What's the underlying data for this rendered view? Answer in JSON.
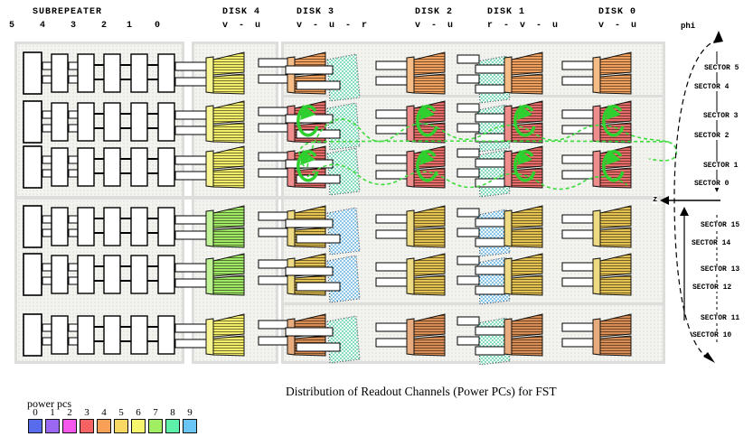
{
  "title": "Distribution of Readout Channels (Power PCs) for FST",
  "header": {
    "subrepeater_label": "SUBREPEATER",
    "subrepeater_channels": [
      "5",
      "4",
      "3",
      "2",
      "1",
      "0"
    ],
    "disks": [
      {
        "label": "DISK 4",
        "planes": "v - u"
      },
      {
        "label": "DISK 3",
        "planes": "v - u - r"
      },
      {
        "label": "DISK 2",
        "planes": "v - u"
      },
      {
        "label": "DISK 1",
        "planes": "r - v - u"
      },
      {
        "label": "DISK 0",
        "planes": "v - u"
      }
    ]
  },
  "axis": {
    "phi_label": "phi",
    "z_label": "z",
    "sectors_top": [
      "SECTOR 5",
      "SECTOR 4",
      "SECTOR 3",
      "SECTOR 2",
      "SECTOR 1",
      "SECTOR 0"
    ],
    "sectors_bottom": [
      "SECTOR 15",
      "SECTOR 14",
      "SECTOR 13",
      "SECTOR 12",
      "SECTOR 11",
      "SECTOR 10"
    ]
  },
  "legend": {
    "label": "power pcs",
    "items": [
      {
        "id": "0",
        "color": "#5a6cee"
      },
      {
        "id": "1",
        "color": "#9a68f2"
      },
      {
        "id": "2",
        "color": "#f857ee"
      },
      {
        "id": "3",
        "color": "#f76262"
      },
      {
        "id": "4",
        "color": "#f8a058"
      },
      {
        "id": "5",
        "color": "#f8d862"
      },
      {
        "id": "6",
        "color": "#f6f66e"
      },
      {
        "id": "7",
        "color": "#a2ee62"
      },
      {
        "id": "8",
        "color": "#5cf0a8"
      },
      {
        "id": "9",
        "color": "#6ac6f6"
      }
    ]
  },
  "wedge_colors": {
    "yellow": {
      "fill": "#f1ee6b",
      "strip": "#f7f591"
    },
    "green": {
      "fill": "#9de867",
      "strip": "#bdf393"
    },
    "orange": {
      "fill": "#efa05e",
      "strip": "#f5bc85"
    },
    "red": {
      "fill": "#e56a6a",
      "strip": "#ef8d8d"
    },
    "gold": {
      "fill": "#e2c253",
      "strip": "#eeda82"
    },
    "sienna": {
      "fill": "#d78d55",
      "strip": "#e7ab7d"
    }
  },
  "stipple_colors": {
    "teal": "#3cc795",
    "blue": "#3f9fd4"
  },
  "flow_color": "#2ecf2e",
  "grid_rows": [
    {
      "disk4": "yellow",
      "main": "orange",
      "stipple": "teal",
      "arrows": false
    },
    {
      "disk4": "yellow",
      "main": "red",
      "stipple": "teal",
      "arrows": true
    },
    {
      "disk4": "yellow",
      "main": "red",
      "stipple": "teal",
      "arrows": true
    },
    {
      "disk4": "green",
      "main": "gold",
      "stipple": "blue",
      "arrows": false
    },
    {
      "disk4": "green",
      "main": "gold",
      "stipple": "blue",
      "arrows": false
    },
    {
      "disk4": "yellow",
      "main": "sienna",
      "stipple": "teal",
      "arrows": false
    }
  ]
}
